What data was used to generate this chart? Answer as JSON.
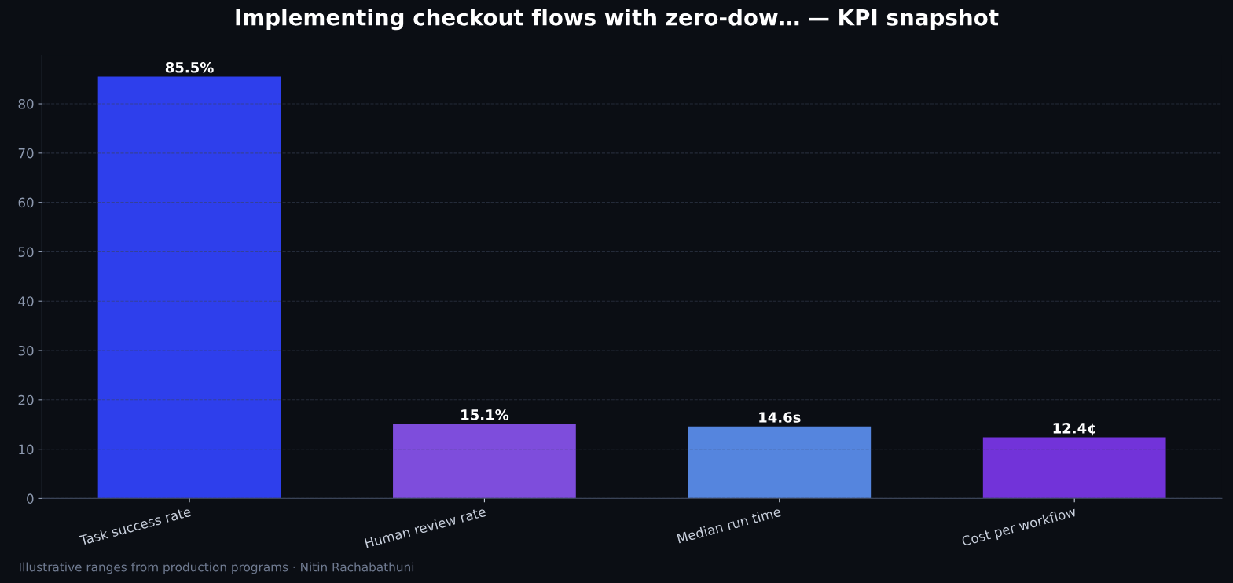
{
  "chart_data": {
    "type": "bar",
    "title": "Implementing checkout flows with zero-dow… — KPI snapshot",
    "categories": [
      "Task success rate",
      "Human review rate",
      "Median run time",
      "Cost per workflow"
    ],
    "values": [
      85.5,
      15.1,
      14.6,
      12.4
    ],
    "colors": [
      "#2e3fec",
      "#7e4ddc",
      "#5585de",
      "#7233d9"
    ],
    "value_labels": [
      "85.5%",
      "15.1%",
      "14.6s",
      "12.4¢"
    ],
    "ylim": [
      0,
      89.8
    ],
    "yticks": [
      0,
      10,
      20,
      30,
      40,
      50,
      60,
      70,
      80
    ],
    "grid": "y",
    "legend": false,
    "annotations": [
      "Illustrative ranges from production programs · Nitin Rachabathuni"
    ]
  }
}
